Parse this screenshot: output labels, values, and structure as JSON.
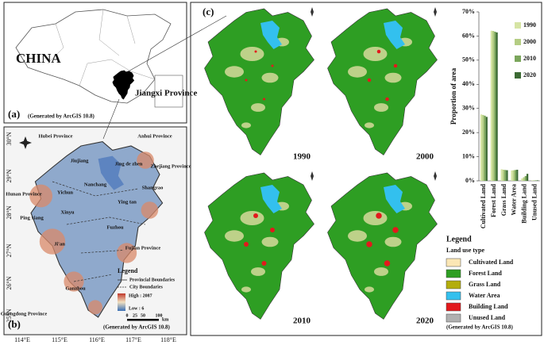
{
  "panel_a": {
    "label": "(a)",
    "country": "CHINA",
    "province": "Jiangxi Province",
    "credit": "(Generated by ArcGIS 10.8)"
  },
  "panel_b": {
    "label": "(b)",
    "longitudes": [
      "114°E",
      "115°E",
      "116°E",
      "117°E",
      "118°E"
    ],
    "latitudes": [
      "30°N",
      "29°N",
      "28°N",
      "27°N",
      "26°N",
      "25°N"
    ],
    "places": [
      "Hubei Province",
      "Anhui Province",
      "Jiujiang",
      "Jing de zhen",
      "Zhejiang Province",
      "Shangrao",
      "Nanchang",
      "Yichun",
      "Hunan Province",
      "Ying tan",
      "Xinyu",
      "Ping xiang",
      "Fuzhou",
      "Ji'an",
      "Fujian Province",
      "Ganzhou",
      "Guangdong Province"
    ],
    "legend": {
      "title": "Legend",
      "items": [
        "Provincial Boundaries",
        "City Boundaries"
      ],
      "high": "High : 2087",
      "low": "Low : 6"
    },
    "scale": {
      "ticks": [
        "0",
        "25",
        "50",
        "100"
      ],
      "unit": "km"
    },
    "credit": "(Generated by ArcGIS 10.8)"
  },
  "panel_c": {
    "label": "(c)",
    "maps": [
      "1990",
      "2000",
      "2010",
      "2020"
    ],
    "legend": {
      "title": "Legend",
      "subtitle": "Land use type",
      "items": [
        {
          "name": "Cultivated Land",
          "color": "#fbe7b5"
        },
        {
          "name": "Forest Land",
          "color": "#2e9e23"
        },
        {
          "name": "Grass Land",
          "color": "#b3ad0c"
        },
        {
          "name": "Water Area",
          "color": "#33c0ee"
        },
        {
          "name": "Building Land",
          "color": "#e3191c"
        },
        {
          "name": "Unused Land",
          "color": "#b0b0b0"
        }
      ]
    },
    "credit": "(Generated by ArcGIS 10.8)"
  },
  "chart_data": {
    "type": "bar",
    "ylabel": "Proportion of area",
    "categories": [
      "Cultivated Land",
      "Forest Land",
      "Grass Land",
      "Water Area",
      "Building Land",
      "Unused Land"
    ],
    "series": [
      {
        "name": "1990",
        "color": "#d6e4a4",
        "values": [
          27.5,
          62.2,
          4.8,
          4.3,
          1.0,
          0.2
        ]
      },
      {
        "name": "2000",
        "color": "#b4cd83",
        "values": [
          27.3,
          62.1,
          4.6,
          4.4,
          1.5,
          0.2
        ]
      },
      {
        "name": "2010",
        "color": "#7ba65c",
        "values": [
          27.0,
          61.8,
          4.5,
          4.5,
          2.0,
          0.2
        ]
      },
      {
        "name": "2020",
        "color": "#3c6a34",
        "values": [
          26.5,
          61.5,
          4.4,
          4.6,
          2.9,
          0.2
        ]
      }
    ],
    "ylim": [
      0,
      70
    ],
    "yticks": [
      {
        "value": 0,
        "label": "0%"
      },
      {
        "value": 10,
        "label": "10%"
      },
      {
        "value": 20,
        "label": "20%"
      },
      {
        "value": 30,
        "label": "30%"
      },
      {
        "value": 40,
        "label": "40%"
      },
      {
        "value": 50,
        "label": "50%"
      },
      {
        "value": 60,
        "label": "60%"
      },
      {
        "value": 70,
        "label": "70%"
      }
    ]
  }
}
